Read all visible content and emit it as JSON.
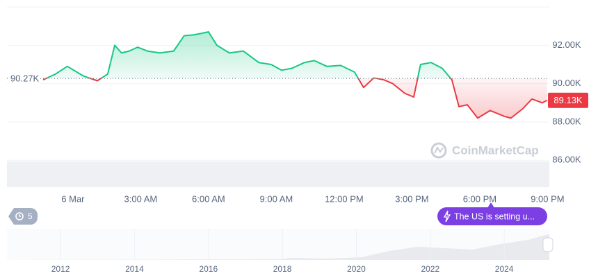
{
  "chart_data": {
    "type": "line",
    "x": [
      -1.32,
      -0.77,
      -0.25,
      0.46,
      1.08,
      1.54,
      1.85,
      2.15,
      2.49,
      2.86,
      3.29,
      3.85,
      4.46,
      4.92,
      5.38,
      6.0,
      6.37,
      6.92,
      7.54,
      8.22,
      8.77,
      9.23,
      9.69,
      10.25,
      10.68,
      11.23,
      11.85,
      12.46,
      12.86,
      13.32,
      13.75,
      14.15,
      14.68,
      15.08,
      15.38,
      15.85,
      16.34,
      16.77,
      17.08,
      17.45,
      17.91,
      18.46,
      19.08,
      19.38,
      19.91,
      20.31,
      20.77,
      20.98
    ],
    "values": [
      90200,
      90500,
      90900,
      90400,
      90150,
      90500,
      92000,
      91600,
      91700,
      91900,
      91700,
      91600,
      91700,
      92500,
      92550,
      92700,
      92000,
      91600,
      91700,
      91100,
      91000,
      90700,
      90800,
      91100,
      91200,
      90900,
      90950,
      90600,
      89800,
      90300,
      90200,
      90000,
      89500,
      89300,
      91000,
      91100,
      90800,
      90200,
      88800,
      88900,
      88200,
      88600,
      88300,
      88200,
      88700,
      89200,
      89000,
      89130
    ],
    "up_color": "#16c784",
    "down_color": "#ea3943",
    "baseline": {
      "value": 90270,
      "label": "90.27K"
    },
    "last_price": {
      "value": 89130,
      "label": "89.13K"
    },
    "xlim": [
      -2.92,
      21.08
    ],
    "xticks": [
      {
        "value": 0,
        "label": "6 Mar"
      },
      {
        "value": 3,
        "label": "3:00 AM"
      },
      {
        "value": 6,
        "label": "6:00 AM"
      },
      {
        "value": 9,
        "label": "9:00 AM"
      },
      {
        "value": 12,
        "label": "12:00 PM"
      },
      {
        "value": 15,
        "label": "3:00 PM"
      },
      {
        "value": 18,
        "label": "6:00 PM"
      },
      {
        "value": 21,
        "label": "9:00 PM"
      }
    ],
    "ylim": [
      84600,
      94000
    ],
    "yticks": [
      {
        "value": 86000,
        "label": "86.00K"
      },
      {
        "value": 88000,
        "label": "88.00K"
      },
      {
        "value": 90000,
        "label": "90.00K"
      },
      {
        "value": 92000,
        "label": "92.00K"
      }
    ],
    "grid": true,
    "watermark": "CoinMarketCap",
    "history_badge": "5",
    "event": "The US is setting u...",
    "navigator": {
      "xlim": [
        2010.55,
        2025.22
      ],
      "xticks": [
        2012,
        2014,
        2016,
        2018,
        2020,
        2022,
        2024
      ]
    }
  }
}
